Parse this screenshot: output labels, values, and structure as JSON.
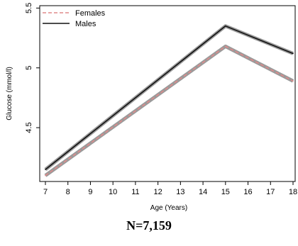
{
  "chart_data": {
    "type": "line",
    "title": "",
    "xlabel": "Age (Years)",
    "ylabel": "Glucose (mmol/l)",
    "xlim": [
      7,
      18
    ],
    "ylim": [
      4.05,
      5.52
    ],
    "x_ticks": [
      "7",
      "8",
      "9",
      "10",
      "11",
      "12",
      "13",
      "14",
      "15",
      "16",
      "17",
      "18"
    ],
    "y_ticks": [
      "4.5",
      "5",
      "5.5"
    ],
    "legend_position": "top-left",
    "series": [
      {
        "name": "Females",
        "style": "dashed",
        "color": "#e08a8a",
        "x": [
          7,
          15,
          18
        ],
        "y": [
          4.1,
          5.18,
          4.89
        ]
      },
      {
        "name": "Males",
        "style": "solid",
        "color": "#111111",
        "x": [
          7,
          15,
          18
        ],
        "y": [
          4.15,
          5.35,
          5.12
        ]
      }
    ]
  },
  "caption": "N=7,159"
}
